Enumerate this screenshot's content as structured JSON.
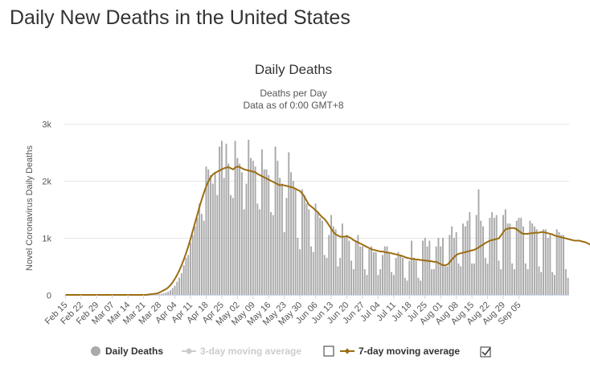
{
  "page": {
    "title": "Daily New Deaths in the United States"
  },
  "chart_data": {
    "type": "bar",
    "title": "Daily Deaths",
    "subtitle": "Deaths per Day",
    "subtitle2": "Data as of 0:00 GMT+8",
    "ylabel": "Novel Coronavirus Daily Deaths",
    "xlabel": "",
    "ylim": [
      0,
      3000
    ],
    "yticks": [
      0,
      1000,
      2000,
      3000
    ],
    "ytick_labels": [
      "0",
      "1k",
      "2k",
      "3k"
    ],
    "xtick_labels": [
      "Feb 15",
      "Feb 22",
      "Feb 29",
      "Mar 07",
      "Mar 14",
      "Mar 21",
      "Mar 28",
      "Apr 04",
      "Apr 11",
      "Apr 18",
      "Apr 25",
      "May 02",
      "May 09",
      "May 16",
      "May 23",
      "May 30",
      "Jun 06",
      "Jun 13",
      "Jun 20",
      "Jun 27",
      "Jul 04",
      "Jul 11",
      "Jul 18",
      "Jul 25",
      "Aug 01",
      "Aug 08",
      "Aug 15",
      "Aug 22",
      "Aug 29",
      "Sep 05"
    ],
    "categories_start": "Feb 15",
    "grid": true,
    "legend_position": "bottom",
    "series": [
      {
        "name": "Daily Deaths",
        "type": "bar",
        "color": "#aaaaaa",
        "values": [
          0,
          0,
          0,
          0,
          0,
          0,
          0,
          0,
          0,
          0,
          0,
          0,
          0,
          0,
          0,
          0,
          0,
          0,
          0,
          0,
          0,
          0,
          0,
          0,
          0,
          0,
          0,
          0,
          0,
          0,
          0,
          0,
          0,
          0,
          0,
          0,
          0,
          1,
          2,
          3,
          5,
          8,
          12,
          20,
          25,
          40,
          55,
          80,
          120,
          160,
          230,
          300,
          380,
          520,
          650,
          700,
          920,
          1050,
          1200,
          1350,
          1600,
          1420,
          1300,
          2250,
          2200,
          2100,
          1950,
          2150,
          1750,
          2600,
          2700,
          2050,
          2650,
          2300,
          1750,
          1700,
          2700,
          2400,
          2300,
          2150,
          1500,
          1950,
          2720,
          2400,
          2350,
          2250,
          1600,
          1500,
          2550,
          2200,
          2200,
          2100,
          1450,
          1400,
          2600,
          2350,
          2050,
          1950,
          1100,
          1700,
          2500,
          2150,
          2000,
          1850,
          1000,
          800,
          1850,
          1750,
          1600,
          1500,
          850,
          750,
          1600,
          1450,
          1350,
          1300,
          700,
          650,
          1050,
          1400,
          1200,
          1150,
          500,
          650,
          1250,
          1000,
          1050,
          950,
          600,
          450,
          950,
          1050,
          850,
          850,
          450,
          350,
          800,
          850,
          750,
          750,
          350,
          450,
          700,
          850,
          850,
          750,
          400,
          350,
          650,
          750,
          700,
          650,
          300,
          250,
          600,
          950,
          650,
          600,
          300,
          250,
          950,
          1000,
          850,
          950,
          450,
          450,
          850,
          1000,
          850,
          1000,
          500,
          500,
          1050,
          1200,
          1000,
          1100,
          550,
          500,
          1250,
          1200,
          1300,
          1450,
          550,
          550,
          1400,
          1850,
          1300,
          1200,
          650,
          550,
          1350,
          1450,
          1350,
          1400,
          600,
          450,
          1400,
          1500,
          1250,
          1250,
          550,
          450,
          1300,
          1350,
          1350,
          1200,
          550,
          450,
          1300,
          1250,
          1200,
          1150,
          500,
          400,
          1150,
          1150,
          1000,
          1050,
          400,
          350,
          1150,
          1100,
          1050,
          1050,
          450,
          300
        ]
      },
      {
        "name": "3-day moving average",
        "visible": false,
        "color": "#cccccc"
      },
      {
        "name": "7-day moving average",
        "type": "line",
        "color": "#9c6d12",
        "values": [
          0,
          0,
          0,
          0,
          0,
          0,
          0,
          0,
          0,
          0,
          0,
          0,
          0,
          0,
          0,
          0,
          0,
          0,
          0,
          0,
          0,
          0,
          0,
          0,
          0,
          0,
          0,
          0,
          0,
          0,
          0,
          0,
          0,
          0,
          0,
          0,
          0,
          5,
          10,
          15,
          20,
          25,
          40,
          60,
          80,
          100,
          130,
          170,
          220,
          280,
          350,
          430,
          520,
          620,
          730,
          850,
          980,
          1120,
          1260,
          1400,
          1540,
          1670,
          1790,
          1900,
          1990,
          2060,
          2110,
          2140,
          2160,
          2180,
          2200,
          2220,
          2230,
          2240,
          2220,
          2200,
          2230,
          2250,
          2240,
          2220,
          2200,
          2190,
          2180,
          2170,
          2160,
          2150,
          2120,
          2100,
          2080,
          2060,
          2040,
          2020,
          2000,
          1980,
          1960,
          1940,
          1920,
          1930,
          1920,
          1910,
          1900,
          1890,
          1880,
          1860,
          1840,
          1820,
          1780,
          1720,
          1650,
          1580,
          1550,
          1520,
          1480,
          1450,
          1400,
          1360,
          1330,
          1280,
          1220,
          1160,
          1100,
          1060,
          1040,
          1020,
          1020,
          1020,
          1030,
          1010,
          990,
          960,
          940,
          920,
          900,
          880,
          860,
          840,
          820,
          800,
          790,
          780,
          770,
          760,
          760,
          750,
          740,
          740,
          730,
          720,
          710,
          700,
          690,
          680,
          660,
          650,
          640,
          630,
          630,
          620,
          620,
          610,
          610,
          600,
          600,
          590,
          590,
          580,
          580,
          560,
          540,
          520,
          520,
          530,
          570,
          620,
          660,
          700,
          720,
          730,
          740,
          750,
          760,
          770,
          780,
          790,
          810,
          830,
          860,
          880,
          910,
          930,
          950,
          960,
          970,
          980,
          990,
          1040,
          1100,
          1150,
          1160,
          1170,
          1170,
          1170,
          1150,
          1120,
          1090,
          1070,
          1070,
          1070,
          1080,
          1080,
          1090,
          1090,
          1090,
          1100,
          1100,
          1090,
          1080,
          1070,
          1060,
          1040,
          1030,
          1020,
          1010,
          1000,
          990,
          980,
          970,
          960,
          950,
          950,
          950,
          940,
          930,
          920,
          900,
          880,
          870,
          860,
          850,
          840,
          830,
          830
        ]
      }
    ]
  },
  "legend": {
    "items": [
      {
        "label": "Daily Deaths"
      },
      {
        "label": "3-day moving average"
      },
      {
        "label": "7-day moving average"
      }
    ]
  }
}
